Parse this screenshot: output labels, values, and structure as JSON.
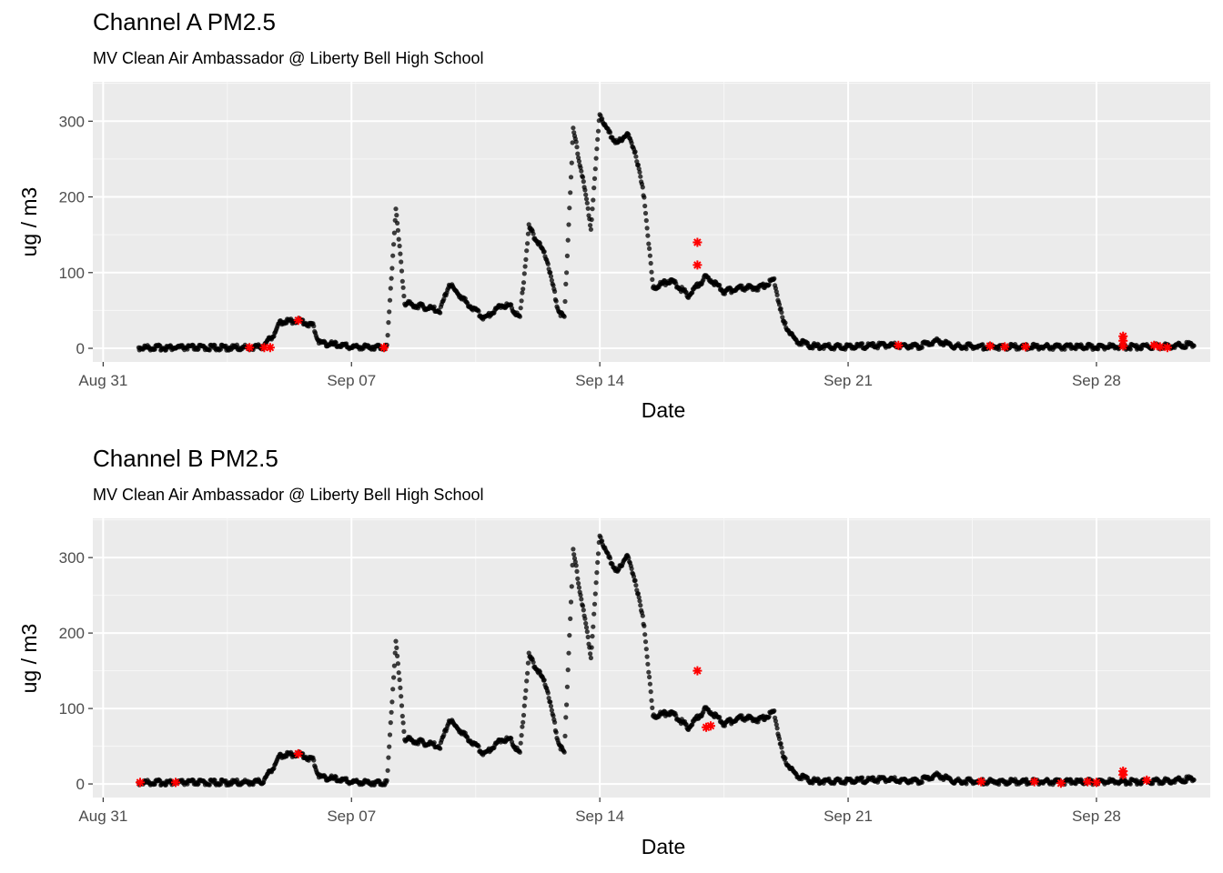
{
  "chart_data": [
    {
      "type": "scatter",
      "title": "Channel A PM2.5",
      "subtitle": "MV Clean Air Ambassador @ Liberty Bell High School",
      "xlabel": "Date",
      "ylabel": "ug / m3",
      "x_ticks": [
        "Aug 31",
        "Sep 07",
        "Sep 14",
        "Sep 21",
        "Sep 28"
      ],
      "y_ticks": [
        "0",
        "100",
        "200",
        "300"
      ],
      "xlim": [
        "2020-08-30T17:00",
        "2020-10-01T05:00"
      ],
      "ylim": [
        -18,
        352
      ],
      "grid": true,
      "colors": {
        "panel": "#ebebeb",
        "points": "#000000",
        "outliers": "#ff0000"
      },
      "series": [
        {
          "values": [
            [
              "2020-09-01T00:00",
              1
            ],
            [
              "2020-09-02T00:00",
              1
            ],
            [
              "2020-09-03T00:00",
              1
            ],
            [
              "2020-09-04T00:00",
              1
            ],
            [
              "2020-09-04T12:00",
              2
            ],
            [
              "2020-09-04T20:00",
              20
            ],
            [
              "2020-09-05T00:00",
              35
            ],
            [
              "2020-09-05T12:00",
              37
            ],
            [
              "2020-09-05T22:00",
              30
            ],
            [
              "2020-09-06T02:00",
              8
            ],
            [
              "2020-09-06T12:00",
              5
            ],
            [
              "2020-09-07T00:00",
              2
            ],
            [
              "2020-09-07T12:00",
              2
            ],
            [
              "2020-09-08T00:00",
              2
            ],
            [
              "2020-09-08T06:00",
              185
            ],
            [
              "2020-09-08T12:00",
              60
            ],
            [
              "2020-09-09T00:00",
              55
            ],
            [
              "2020-09-09T12:00",
              50
            ],
            [
              "2020-09-09T18:00",
              85
            ],
            [
              "2020-09-10T06:00",
              60
            ],
            [
              "2020-09-10T18:00",
              40
            ],
            [
              "2020-09-11T06:00",
              58
            ],
            [
              "2020-09-11T12:00",
              55
            ],
            [
              "2020-09-11T18:00",
              40
            ],
            [
              "2020-09-12T00:00",
              160
            ],
            [
              "2020-09-12T12:00",
              120
            ],
            [
              "2020-09-12T20:00",
              50
            ],
            [
              "2020-09-13T00:00",
              40
            ],
            [
              "2020-09-13T06:00",
              290
            ],
            [
              "2020-09-13T12:00",
              230
            ],
            [
              "2020-09-13T18:00",
              160
            ],
            [
              "2020-09-14T00:00",
              310
            ],
            [
              "2020-09-14T06:00",
              285
            ],
            [
              "2020-09-14T12:00",
              270
            ],
            [
              "2020-09-14T18:00",
              285
            ],
            [
              "2020-09-15T00:00",
              260
            ],
            [
              "2020-09-15T06:00",
              200
            ],
            [
              "2020-09-15T12:00",
              80
            ],
            [
              "2020-09-16T00:00",
              90
            ],
            [
              "2020-09-16T12:00",
              70
            ],
            [
              "2020-09-17T00:00",
              95
            ],
            [
              "2020-09-17T12:00",
              75
            ],
            [
              "2020-09-18T00:00",
              80
            ],
            [
              "2020-09-18T12:00",
              80
            ],
            [
              "2020-09-18T22:00",
              90
            ],
            [
              "2020-09-19T04:00",
              35
            ],
            [
              "2020-09-19T12:00",
              10
            ],
            [
              "2020-09-20T00:00",
              3
            ],
            [
              "2020-09-21T00:00",
              2
            ],
            [
              "2020-09-22T00:00",
              4
            ],
            [
              "2020-09-23T00:00",
              3
            ],
            [
              "2020-09-23T12:00",
              10
            ],
            [
              "2020-09-24T00:00",
              3
            ],
            [
              "2020-09-25T00:00",
              2
            ],
            [
              "2020-09-26T00:00",
              2
            ],
            [
              "2020-09-27T00:00",
              2
            ],
            [
              "2020-09-28T00:00",
              2
            ],
            [
              "2020-09-29T00:00",
              2
            ],
            [
              "2020-09-30T00:00",
              3
            ],
            [
              "2020-09-30T18:00",
              5
            ]
          ]
        },
        {
          "name": "outliers",
          "values": [
            [
              "2020-09-04T03:00",
              1
            ],
            [
              "2020-09-04T13:00",
              1
            ],
            [
              "2020-09-04T17:00",
              1
            ],
            [
              "2020-09-05T12:00",
              37
            ],
            [
              "2020-09-07T22:00",
              1
            ],
            [
              "2020-09-16T18:00",
              140
            ],
            [
              "2020-09-16T18:00",
              110
            ],
            [
              "2020-09-22T10:00",
              4
            ],
            [
              "2020-09-25T00:00",
              3
            ],
            [
              "2020-09-25T10:00",
              2
            ],
            [
              "2020-09-26T00:00",
              2
            ],
            [
              "2020-09-28T18:00",
              16
            ],
            [
              "2020-09-28T18:00",
              10
            ],
            [
              "2020-09-28T18:00",
              3
            ],
            [
              "2020-09-29T15:00",
              4
            ],
            [
              "2020-09-29T19:00",
              2
            ],
            [
              "2020-09-30T00:00",
              1
            ]
          ]
        }
      ]
    },
    {
      "type": "scatter",
      "title": "Channel B PM2.5",
      "subtitle": "MV Clean Air Ambassador @ Liberty Bell High School",
      "xlabel": "Date",
      "ylabel": "ug / m3",
      "x_ticks": [
        "Aug 31",
        "Sep 07",
        "Sep 14",
        "Sep 21",
        "Sep 28"
      ],
      "y_ticks": [
        "0",
        "100",
        "200",
        "300"
      ],
      "xlim": [
        "2020-08-30T17:00",
        "2020-10-01T05:00"
      ],
      "ylim": [
        -18,
        352
      ],
      "grid": true,
      "colors": {
        "panel": "#ebebeb",
        "points": "#000000",
        "outliers": "#ff0000"
      },
      "series": [
        {
          "values": [
            [
              "2020-09-01T00:00",
              2
            ],
            [
              "2020-09-02T00:00",
              2
            ],
            [
              "2020-09-03T00:00",
              2
            ],
            [
              "2020-09-04T00:00",
              2
            ],
            [
              "2020-09-04T12:00",
              3
            ],
            [
              "2020-09-04T20:00",
              25
            ],
            [
              "2020-09-05T00:00",
              38
            ],
            [
              "2020-09-05T12:00",
              40
            ],
            [
              "2020-09-05T22:00",
              32
            ],
            [
              "2020-09-06T02:00",
              10
            ],
            [
              "2020-09-06T12:00",
              7
            ],
            [
              "2020-09-07T00:00",
              3
            ],
            [
              "2020-09-07T12:00",
              2
            ],
            [
              "2020-09-08T00:00",
              2
            ],
            [
              "2020-09-08T06:00",
              190
            ],
            [
              "2020-09-08T12:00",
              60
            ],
            [
              "2020-09-09T00:00",
              55
            ],
            [
              "2020-09-09T12:00",
              50
            ],
            [
              "2020-09-09T18:00",
              85
            ],
            [
              "2020-09-10T06:00",
              62
            ],
            [
              "2020-09-10T18:00",
              40
            ],
            [
              "2020-09-11T06:00",
              60
            ],
            [
              "2020-09-11T12:00",
              58
            ],
            [
              "2020-09-11T18:00",
              40
            ],
            [
              "2020-09-12T00:00",
              170
            ],
            [
              "2020-09-12T12:00",
              130
            ],
            [
              "2020-09-12T20:00",
              55
            ],
            [
              "2020-09-13T00:00",
              40
            ],
            [
              "2020-09-13T06:00",
              310
            ],
            [
              "2020-09-13T12:00",
              240
            ],
            [
              "2020-09-13T18:00",
              170
            ],
            [
              "2020-09-14T00:00",
              330
            ],
            [
              "2020-09-14T06:00",
              300
            ],
            [
              "2020-09-14T12:00",
              280
            ],
            [
              "2020-09-14T18:00",
              305
            ],
            [
              "2020-09-15T00:00",
              270
            ],
            [
              "2020-09-15T06:00",
              210
            ],
            [
              "2020-09-15T12:00",
              90
            ],
            [
              "2020-09-16T00:00",
              95
            ],
            [
              "2020-09-16T12:00",
              75
            ],
            [
              "2020-09-17T00:00",
              100
            ],
            [
              "2020-09-17T12:00",
              80
            ],
            [
              "2020-09-18T00:00",
              88
            ],
            [
              "2020-09-18T12:00",
              85
            ],
            [
              "2020-09-18T22:00",
              95
            ],
            [
              "2020-09-19T04:00",
              35
            ],
            [
              "2020-09-19T12:00",
              12
            ],
            [
              "2020-09-20T00:00",
              4
            ],
            [
              "2020-09-21T00:00",
              4
            ],
            [
              "2020-09-22T00:00",
              6
            ],
            [
              "2020-09-23T00:00",
              4
            ],
            [
              "2020-09-23T12:00",
              12
            ],
            [
              "2020-09-24T00:00",
              4
            ],
            [
              "2020-09-25T00:00",
              3
            ],
            [
              "2020-09-26T00:00",
              3
            ],
            [
              "2020-09-27T00:00",
              3
            ],
            [
              "2020-09-28T00:00",
              3
            ],
            [
              "2020-09-29T00:00",
              3
            ],
            [
              "2020-09-30T00:00",
              4
            ],
            [
              "2020-09-30T18:00",
              7
            ]
          ]
        },
        {
          "name": "outliers",
          "values": [
            [
              "2020-09-01T01:00",
              2
            ],
            [
              "2020-09-02T01:00",
              2
            ],
            [
              "2020-09-05T12:00",
              40
            ],
            [
              "2020-09-16T18:00",
              150
            ],
            [
              "2020-09-17T00:00",
              75
            ],
            [
              "2020-09-17T03:00",
              77
            ],
            [
              "2020-09-24T18:00",
              3
            ],
            [
              "2020-09-26T06:00",
              3
            ],
            [
              "2020-09-27T00:00",
              1
            ],
            [
              "2020-09-27T18:00",
              3
            ],
            [
              "2020-09-28T00:00",
              2
            ],
            [
              "2020-09-28T18:00",
              17
            ],
            [
              "2020-09-28T18:00",
              12
            ],
            [
              "2020-09-29T10:00",
              5
            ]
          ]
        }
      ]
    }
  ]
}
